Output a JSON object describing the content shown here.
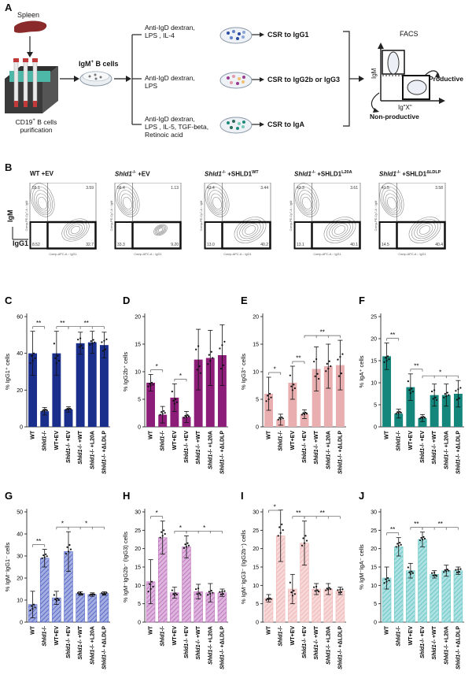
{
  "panel_a": {
    "letter": "A",
    "spleen_label": "Spleen",
    "purification_label_1": "CD19",
    "purification_label_sup": "+",
    "purification_label_2": " B cells",
    "purification_label_3": "purification",
    "igm_b_cells": "IgM",
    "igm_b_cells_sup": "+",
    "igm_b_cells_rest": " B cells",
    "conditions": [
      {
        "line1": "Anti-IgD dextran,",
        "line2": "LPS , IL-4",
        "line3": "",
        "csr": "CSR to IgG1",
        "dot_colors": [
          "#2b4aa0",
          "#5f80c9",
          "#8aa4d8"
        ]
      },
      {
        "line1": "Anti-IgD dextran,",
        "line2": "LPS",
        "line3": "",
        "csr": "CSR to IgG2b or IgG3",
        "dot_colors": [
          "#9a3b8e",
          "#e39aa8",
          "#f0c070"
        ]
      },
      {
        "line1": "Anti-IgD dextran,",
        "line2": "LPS , IL-5, TGF-beta,",
        "line3": "Retinoic acid",
        "csr": "CSR to IgA",
        "dot_colors": [
          "#1c8a7a",
          "#2c6a5a",
          "#7ac9b8"
        ]
      }
    ],
    "facs_label": "FACS",
    "facs_axis_y": "IgM",
    "facs_axis_x": "Ig\"X\"",
    "productive": "Productive",
    "non_productive": "Non-productive"
  },
  "panel_b": {
    "letter": "B",
    "axis_y": "IgM",
    "axis_x": "IgG1",
    "plot_axis_x": "Comp-APC-A :: IgG1",
    "plot_axis_y": "Comp-PE-Cy7-A :: IgM",
    "plots": [
      {
        "title_main": "WT +EV",
        "title_italic": "",
        "title_sup": "",
        "tl": "55.1",
        "tr": "3.59",
        "bl": "8.52",
        "br": "32.7"
      },
      {
        "title_main": " +EV",
        "title_italic": "Shld1",
        "title_sup": "-/-",
        "tl": "56.4",
        "tr": "1.13",
        "bl": "33.3",
        "br": "9.20"
      },
      {
        "title_main": " +SHLD1",
        "title_italic": "Shld1",
        "title_sup": "-/-",
        "title_sup2": "WT",
        "tl": "43.4",
        "tr": "3.44",
        "bl": "13.0",
        "br": "40.2"
      },
      {
        "title_main": " +SHLD1",
        "title_italic": "Shld1",
        "title_sup": "-/-",
        "title_sup2": "L20A",
        "tl": "43.3",
        "tr": "3.61",
        "bl": "13.1",
        "br": "40.1"
      },
      {
        "title_main": " +SHLD1",
        "title_italic": "Shld1",
        "title_sup": "-/-",
        "title_sup2": "ΔLDLP",
        "tl": "41.5",
        "tr": "3.58",
        "bl": "14.5",
        "br": "40.4"
      }
    ]
  },
  "chart_data": [
    {
      "panel": "C",
      "type": "bar",
      "ylabel": "% IgG1⁺ cells",
      "ylim": [
        0,
        60
      ],
      "yticks": [
        0,
        20,
        40,
        60
      ],
      "color": "#1a2f8c",
      "hatched": false,
      "categories": [
        "WT",
        "Shld1-/-",
        "WT+EV",
        "Shld1-/- +EV",
        "Shld1-/- +WT",
        "Shld1-/- +L20A",
        "Shld1-/- +ΔLDLP"
      ],
      "values": [
        40,
        8.5,
        40,
        9.5,
        45.5,
        46,
        44.5
      ],
      "errors": [
        12,
        2,
        12,
        1.5,
        6,
        6,
        7
      ],
      "sig": [
        {
          "label": "**"
        },
        {
          "label": "**"
        },
        {
          "label": "**"
        }
      ]
    },
    {
      "panel": "D",
      "type": "bar",
      "ylabel": "% IgG2b⁺ cells",
      "ylim": [
        0,
        20
      ],
      "yticks": [
        0,
        5,
        10,
        15,
        20
      ],
      "color": "#8c1e7a",
      "hatched": false,
      "categories": [
        "WT",
        "Shld1-/-",
        "WT+EV",
        "Shld1-/- +EV",
        "Shld1-/- +WT",
        "Shld1-/- +L20A",
        "Shld1-/- +ΔLDLP"
      ],
      "values": [
        8,
        2.2,
        5.3,
        1.8,
        12.2,
        12.5,
        13
      ],
      "errors": [
        1.5,
        1.5,
        2.5,
        1,
        5.5,
        5,
        5.5
      ],
      "sig": [
        {
          "label": "*"
        },
        {
          "label": "*"
        }
      ]
    },
    {
      "panel": "E",
      "type": "bar",
      "ylabel": "% IgG3⁺ cells",
      "ylim": [
        0,
        20
      ],
      "yticks": [
        0,
        5,
        10,
        15,
        20
      ],
      "color": "#e8aeb0",
      "hatched": false,
      "categories": [
        "WT",
        "Shld1-/-",
        "WT+EV",
        "Shld1-/- +EV",
        "Shld1-/- +WT",
        "Shld1-/- +L20A",
        "Shld1-/- +ΔLDLP"
      ],
      "values": [
        6,
        1.3,
        8,
        2.3,
        10.5,
        11,
        11.2
      ],
      "errors": [
        3,
        1,
        3,
        0.8,
        4,
        4,
        4.5
      ],
      "sig": [
        {
          "label": "*"
        },
        {
          "label": "**"
        },
        {
          "label": "**"
        }
      ]
    },
    {
      "panel": "F",
      "type": "bar",
      "ylabel": "% IgA⁺ cells",
      "ylim": [
        0,
        25
      ],
      "yticks": [
        0,
        5,
        10,
        15,
        20,
        25
      ],
      "color": "#14867c",
      "hatched": false,
      "categories": [
        "WT",
        "Shld1-/-",
        "WT+EV",
        "Shld1-/- +EV",
        "Shld1-/- +WT",
        "Shld1-/- +L20A",
        "Shld1-/- +ΔLDLP"
      ],
      "values": [
        16,
        3,
        9,
        2,
        7.2,
        7.2,
        7.5
      ],
      "errors": [
        3,
        1,
        3,
        0.8,
        2.5,
        2.5,
        3
      ],
      "sig": [
        {
          "label": "**"
        },
        {
          "label": "**"
        },
        {
          "label": "*"
        }
      ]
    },
    {
      "panel": "G",
      "type": "bar",
      "ylabel": "% IgM⁻IgG1⁻ cells",
      "ylim": [
        0,
        50
      ],
      "yticks": [
        0,
        10,
        20,
        30,
        40,
        50
      ],
      "color": "#5a6cc8",
      "hatched": true,
      "categories": [
        "WT",
        "Shld1-/-",
        "WT+EV",
        "Shld1-/- +EV",
        "Shld1-/- +WT",
        "Shld1-/- +L20A",
        "Shld1-/- +ΔLDLP"
      ],
      "values": [
        8,
        29,
        11,
        32,
        13,
        12.5,
        13
      ],
      "errors": [
        6,
        4,
        3,
        9,
        0.8,
        0.8,
        0.8
      ],
      "sig": [
        {
          "label": "**"
        },
        {
          "label": "*"
        },
        {
          "label": "*"
        }
      ]
    },
    {
      "panel": "H",
      "type": "bar",
      "ylabel": "% IgM⁻IgG2b⁻ (IgG3) cells",
      "ylim": [
        0,
        30
      ],
      "yticks": [
        0,
        5,
        10,
        15,
        20,
        25,
        30
      ],
      "color": "#c078c0",
      "hatched": true,
      "categories": [
        "WT",
        "Shld1-/-",
        "WT+EV",
        "Shld1-/- +EV",
        "Shld1-/- +WT",
        "Shld1-/- +L20A",
        "Shld1-/- +ΔLDLP"
      ],
      "values": [
        11,
        23,
        8,
        20.5,
        8.3,
        8,
        8
      ],
      "errors": [
        6,
        4.5,
        1.5,
        3,
        2,
        2.5,
        1
      ],
      "sig": [
        {
          "label": "*"
        },
        {
          "label": "*"
        },
        {
          "label": "*"
        }
      ]
    },
    {
      "panel": "I",
      "type": "bar",
      "ylabel": "% IgM⁻IgG3⁻ (IgG2b⁻) cells",
      "ylim": [
        0,
        30
      ],
      "yticks": [
        0,
        5,
        10,
        15,
        20,
        25,
        30
      ],
      "color": "#f0b8b8",
      "hatched": true,
      "categories": [
        "WT",
        "Shld1-/-",
        "WT+EV",
        "Shld1-/- +EV",
        "Shld1-/- +WT",
        "Shld1-/- +L20A",
        "Shld1-/- +ΔLDLP"
      ],
      "values": [
        6.5,
        23.5,
        9,
        21.5,
        9,
        9,
        8.5
      ],
      "errors": [
        1,
        7,
        4,
        6,
        1.5,
        1.5,
        1
      ],
      "sig": [
        {
          "label": "*"
        },
        {
          "label": "**"
        },
        {
          "label": "**"
        }
      ]
    },
    {
      "panel": "J",
      "type": "bar",
      "ylabel": "% IgM⁻IgA⁻ cells",
      "ylim": [
        0,
        30
      ],
      "yticks": [
        0,
        5,
        10,
        15,
        20,
        25,
        30
      ],
      "color": "#6cc8c8",
      "hatched": true,
      "categories": [
        "WT",
        "Shld1-/-",
        "WT+EV",
        "Shld1-/- +EV",
        "Shld1-/- +WT",
        "Shld1-/- +L20A",
        "Shld1-/- +ΔLDLP"
      ],
      "values": [
        12,
        20.5,
        14,
        22.5,
        13,
        14,
        14
      ],
      "errors": [
        3,
        2.5,
        2,
        2,
        1,
        1.5,
        1
      ],
      "sig": [
        {
          "label": "**"
        },
        {
          "label": "**"
        },
        {
          "label": "**"
        }
      ]
    }
  ],
  "xtick_labels": [
    {
      "italic": "",
      "plain": "WT"
    },
    {
      "italic": "Shld1",
      "plain": "-/-"
    },
    {
      "italic": "",
      "plain": "WT+EV"
    },
    {
      "italic": "Shld1",
      "plain": "-/- +EV"
    },
    {
      "italic": "Shld1",
      "plain": "-/- +WT"
    },
    {
      "italic": "Shld1",
      "plain": "-/- +L20A"
    },
    {
      "italic": "Shld1",
      "plain": "-/- +ΔLDLP"
    }
  ]
}
